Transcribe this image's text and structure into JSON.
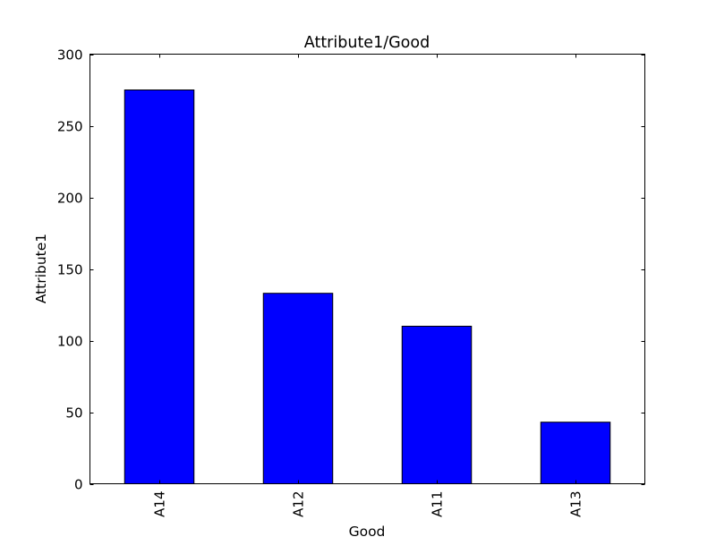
{
  "chart_data": {
    "type": "bar",
    "title": "Attribute1/Good",
    "xlabel": "Good",
    "ylabel": "Attribute1",
    "categories": [
      "A14",
      "A12",
      "A11",
      "A13"
    ],
    "values": [
      275,
      133,
      110,
      43
    ],
    "ylim": [
      0,
      300
    ],
    "yticks": [
      0,
      50,
      100,
      150,
      200,
      250,
      300
    ],
    "ytick_labels": [
      "0",
      "50",
      "100",
      "150",
      "200",
      "250",
      "300"
    ],
    "grid": false,
    "legend": "none",
    "bar_color": "#0000ff"
  }
}
